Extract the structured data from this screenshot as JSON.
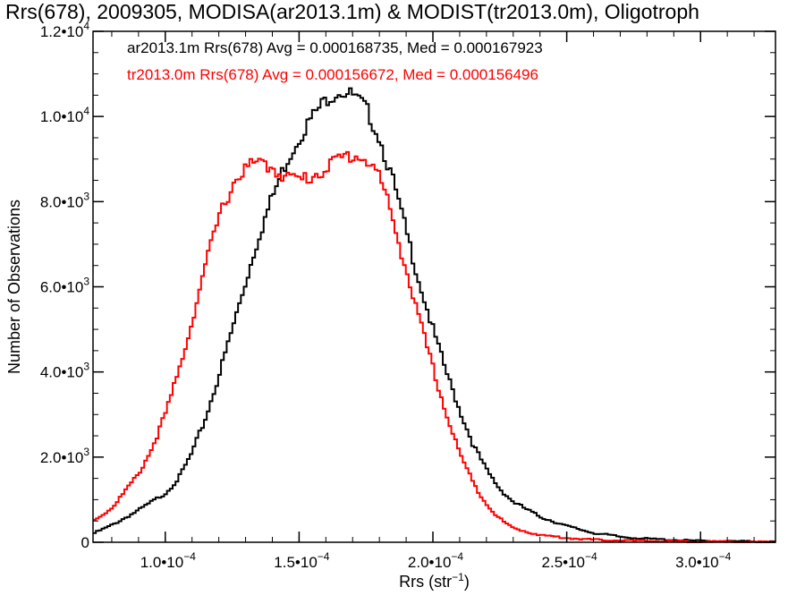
{
  "chart_data": {
    "type": "histogram",
    "title": "Rrs(678), 2009305, MODISA(ar2013.1m) & MODIST(tr2013.0m), Oligotroph",
    "xlabel_base": "Rrs (str",
    "xlabel_exp": "−1",
    "xlabel_close": ")",
    "ylabel": "Number of Observations",
    "xlim": [
      7.3e-05,
      0.000328
    ],
    "ylim": [
      0,
      12000
    ],
    "x_ticks": [
      {
        "value": 0.0001,
        "mantissa": "1.0•10",
        "exp": "−4"
      },
      {
        "value": 0.00015,
        "mantissa": "1.5•10",
        "exp": "−4"
      },
      {
        "value": 0.0002,
        "mantissa": "2.0•10",
        "exp": "−4"
      },
      {
        "value": 0.00025,
        "mantissa": "2.5•10",
        "exp": "−4"
      },
      {
        "value": 0.0003,
        "mantissa": "3.0•10",
        "exp": "−4"
      }
    ],
    "y_ticks": [
      {
        "value": 0,
        "mantissa": "0",
        "exp": ""
      },
      {
        "value": 2000,
        "mantissa": "2.0•10",
        "exp": "3"
      },
      {
        "value": 4000,
        "mantissa": "4.0•10",
        "exp": "3"
      },
      {
        "value": 6000,
        "mantissa": "6.0•10",
        "exp": "3"
      },
      {
        "value": 8000,
        "mantissa": "8.0•10",
        "exp": "3"
      },
      {
        "value": 10000,
        "mantissa": "1.0•10",
        "exp": "4"
      },
      {
        "value": 12000,
        "mantissa": "1.2•10",
        "exp": "4"
      }
    ],
    "legend": [
      {
        "text": "ar2013.1m Rrs(678) Avg = 0.000168735, Med = 0.000167923",
        "color": "#000000"
      },
      {
        "text": "tr2013.0m Rrs(678) Avg = 0.000156672, Med = 0.000156496",
        "color": "#ff0000"
      }
    ],
    "series": [
      {
        "color": "#000000",
        "points": [
          [
            7.3e-05,
            200
          ],
          [
            8e-05,
            400
          ],
          [
            9e-05,
            750
          ],
          [
            0.0001,
            1150
          ],
          [
            0.000105,
            1500
          ],
          [
            0.00011,
            2100
          ],
          [
            0.000115,
            2900
          ],
          [
            0.00012,
            3900
          ],
          [
            0.000125,
            5000
          ],
          [
            0.00013,
            6100
          ],
          [
            0.000135,
            7200
          ],
          [
            0.00014,
            8100
          ],
          [
            0.000145,
            8900
          ],
          [
            0.00015,
            9500
          ],
          [
            0.000155,
            10000
          ],
          [
            0.00016,
            10400
          ],
          [
            0.000165,
            10600
          ],
          [
            0.00017,
            10500
          ],
          [
            0.000175,
            10200
          ],
          [
            0.00018,
            9500
          ],
          [
            0.000185,
            8500
          ],
          [
            0.00019,
            7300
          ],
          [
            0.000195,
            6100
          ],
          [
            0.0002,
            5000
          ],
          [
            0.000205,
            4000
          ],
          [
            0.00021,
            3100
          ],
          [
            0.000215,
            2300
          ],
          [
            0.00022,
            1700
          ],
          [
            0.000225,
            1250
          ],
          [
            0.00023,
            950
          ],
          [
            0.00024,
            600
          ],
          [
            0.00025,
            380
          ],
          [
            0.00026,
            220
          ],
          [
            0.00027,
            130
          ],
          [
            0.00028,
            80
          ],
          [
            0.0003,
            30
          ],
          [
            0.000328,
            10
          ]
        ]
      },
      {
        "color": "#ff0000",
        "points": [
          [
            7.3e-05,
            500
          ],
          [
            8e-05,
            800
          ],
          [
            9e-05,
            1600
          ],
          [
            9.5e-05,
            2200
          ],
          [
            0.0001,
            3000
          ],
          [
            0.000105,
            4000
          ],
          [
            0.00011,
            5200
          ],
          [
            0.000115,
            6500
          ],
          [
            0.00012,
            7600
          ],
          [
            0.000125,
            8400
          ],
          [
            0.00013,
            8800
          ],
          [
            0.000135,
            8900
          ],
          [
            0.00014,
            8800
          ],
          [
            0.000145,
            8600
          ],
          [
            0.00015,
            8500
          ],
          [
            0.000155,
            8600
          ],
          [
            0.00016,
            8800
          ],
          [
            0.000165,
            9000
          ],
          [
            0.00017,
            9100
          ],
          [
            0.000175,
            9000
          ],
          [
            0.00018,
            8600
          ],
          [
            0.000185,
            7600
          ],
          [
            0.00019,
            6400
          ],
          [
            0.000195,
            5200
          ],
          [
            0.0002,
            4100
          ],
          [
            0.000205,
            3000
          ],
          [
            0.00021,
            2100
          ],
          [
            0.000215,
            1400
          ],
          [
            0.00022,
            900
          ],
          [
            0.000225,
            550
          ],
          [
            0.00023,
            330
          ],
          [
            0.00024,
            170
          ],
          [
            0.00025,
            100
          ],
          [
            0.00026,
            60
          ],
          [
            0.00028,
            30
          ],
          [
            0.0003,
            15
          ],
          [
            0.000328,
            5
          ]
        ]
      }
    ]
  }
}
